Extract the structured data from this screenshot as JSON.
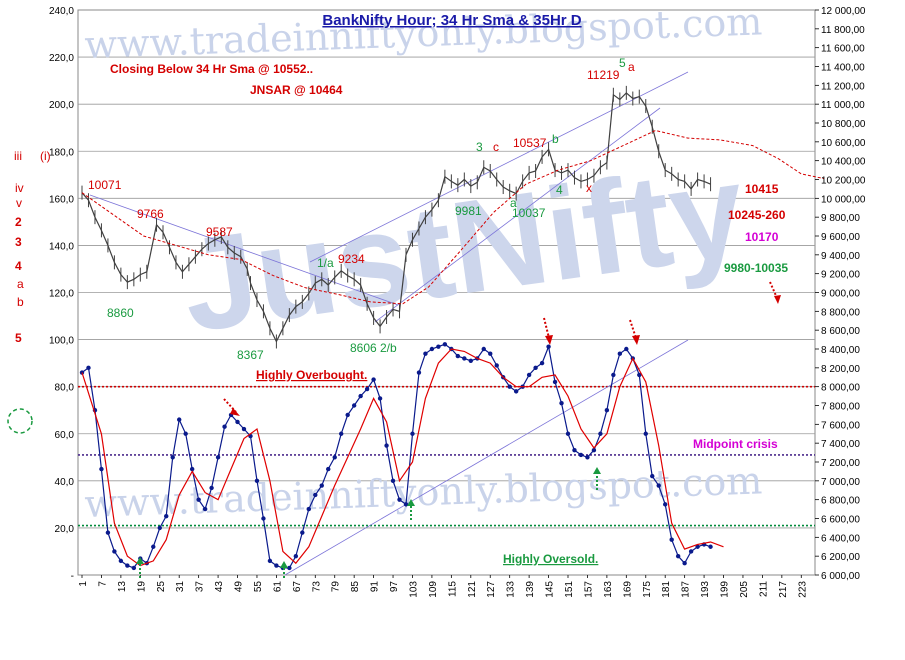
{
  "chart_data": {
    "type": "line",
    "title": "BankNifty Hour; 34 Hr Sma & 35Hr D",
    "watermarks": [
      "www.tradeinniftyonly.blogspot.com",
      "www.tradeinniftyonly.blogspot.com",
      "JustNifty"
    ],
    "left_axis": {
      "ylim": [
        0,
        240
      ],
      "ticks": [
        "-",
        "20,0",
        "40,0",
        "60,0",
        "80,0",
        "100,0",
        "120,0",
        "140,0",
        "160,0",
        "180,0",
        "200,0",
        "220,0",
        "240,0"
      ]
    },
    "right_axis": {
      "ylim": [
        6000,
        12000
      ],
      "ticks": [
        "6 000,00",
        "6 200,00",
        "6 400,00",
        "6 600,00",
        "6 800,00",
        "7 000,00",
        "7 200,00",
        "7 400,00",
        "7 600,00",
        "7 800,00",
        "8 000,00",
        "8 200,00",
        "8 400,00",
        "8 600,00",
        "8 800,00",
        "9 000,00",
        "9 200,00",
        "9 400,00",
        "9 600,00",
        "9 800,00",
        "10 000,00",
        "10 200,00",
        "10 400,00",
        "10 600,00",
        "10 800,00",
        "11 000,00",
        "11 200,00",
        "11 400,00",
        "11 600,00",
        "11 800,00",
        "12 000,00"
      ]
    },
    "x_axis": {
      "xlim": [
        1,
        226
      ],
      "ticks": [
        "1",
        "7",
        "13",
        "19",
        "25",
        "31",
        "37",
        "43",
        "49",
        "55",
        "61",
        "67",
        "73",
        "79",
        "85",
        "91",
        "97",
        "103",
        "109",
        "115",
        "121",
        "127",
        "133",
        "139",
        "145",
        "151",
        "157",
        "163",
        "169",
        "175",
        "181",
        "187",
        "193",
        "199",
        "205",
        "211",
        "217",
        "223"
      ]
    },
    "grid": true,
    "series": [
      {
        "axis": "right",
        "color": "#404040",
        "points": [
          [
            1,
            10060
          ],
          [
            3,
            9980
          ],
          [
            5,
            9800
          ],
          [
            7,
            9660
          ],
          [
            9,
            9500
          ],
          [
            11,
            9320
          ],
          [
            13,
            9190
          ],
          [
            15,
            9110
          ],
          [
            17,
            9140
          ],
          [
            19,
            9190
          ],
          [
            21,
            9220
          ],
          [
            24,
            9720
          ],
          [
            26,
            9640
          ],
          [
            28,
            9480
          ],
          [
            30,
            9320
          ],
          [
            32,
            9220
          ],
          [
            34,
            9300
          ],
          [
            36,
            9380
          ],
          [
            38,
            9460
          ],
          [
            40,
            9520
          ],
          [
            42,
            9560
          ],
          [
            44,
            9590
          ],
          [
            46,
            9480
          ],
          [
            48,
            9420
          ],
          [
            50,
            9380
          ],
          [
            52,
            9250
          ],
          [
            53,
            9100
          ],
          [
            55,
            8920
          ],
          [
            57,
            8800
          ],
          [
            59,
            8620
          ],
          [
            61,
            8480
          ],
          [
            63,
            8620
          ],
          [
            65,
            8760
          ],
          [
            67,
            8850
          ],
          [
            69,
            8900
          ],
          [
            71,
            8990
          ],
          [
            73,
            9100
          ],
          [
            75,
            9140
          ],
          [
            77,
            9080
          ],
          [
            79,
            9160
          ],
          [
            81,
            9230
          ],
          [
            83,
            9180
          ],
          [
            85,
            9140
          ],
          [
            87,
            9080
          ],
          [
            89,
            8880
          ],
          [
            91,
            8730
          ],
          [
            93,
            8640
          ],
          [
            95,
            8740
          ],
          [
            97,
            8820
          ],
          [
            99,
            8800
          ],
          [
            101,
            9400
          ],
          [
            103,
            9560
          ],
          [
            105,
            9680
          ],
          [
            107,
            9800
          ],
          [
            109,
            9880
          ],
          [
            111,
            9980
          ],
          [
            113,
            10230
          ],
          [
            115,
            10180
          ],
          [
            117,
            10140
          ],
          [
            119,
            10200
          ],
          [
            121,
            10130
          ],
          [
            123,
            10170
          ],
          [
            125,
            10330
          ],
          [
            127,
            10290
          ],
          [
            129,
            10200
          ],
          [
            131,
            10120
          ],
          [
            133,
            10080
          ],
          [
            135,
            10050
          ],
          [
            137,
            10180
          ],
          [
            139,
            10270
          ],
          [
            141,
            10290
          ],
          [
            143,
            10440
          ],
          [
            145,
            10520
          ],
          [
            147,
            10300
          ],
          [
            149,
            10270
          ],
          [
            151,
            10300
          ],
          [
            153,
            10220
          ],
          [
            155,
            10180
          ],
          [
            157,
            10200
          ],
          [
            159,
            10240
          ],
          [
            161,
            10330
          ],
          [
            163,
            10380
          ],
          [
            165,
            11100
          ],
          [
            167,
            11050
          ],
          [
            169,
            11120
          ],
          [
            171,
            11060
          ],
          [
            173,
            11080
          ],
          [
            175,
            10980
          ],
          [
            177,
            10760
          ],
          [
            179,
            10500
          ],
          [
            181,
            10300
          ],
          [
            183,
            10260
          ],
          [
            185,
            10200
          ],
          [
            187,
            10180
          ],
          [
            189,
            10100
          ],
          [
            191,
            10200
          ],
          [
            193,
            10180
          ],
          [
            195,
            10150
          ]
        ]
      },
      {
        "axis": "right",
        "color": "#d40000",
        "dashed": true,
        "points": [
          [
            1,
            10060
          ],
          [
            20,
            9600
          ],
          [
            40,
            9400
          ],
          [
            50,
            9350
          ],
          [
            60,
            9180
          ],
          [
            70,
            9050
          ],
          [
            80,
            8980
          ],
          [
            90,
            8900
          ],
          [
            100,
            8880
          ],
          [
            108,
            9060
          ],
          [
            118,
            9450
          ],
          [
            128,
            9850
          ],
          [
            138,
            10150
          ],
          [
            148,
            10300
          ],
          [
            158,
            10400
          ],
          [
            168,
            10560
          ],
          [
            178,
            10720
          ],
          [
            188,
            10640
          ],
          [
            198,
            10620
          ],
          [
            208,
            10560
          ],
          [
            216,
            10420
          ],
          [
            223,
            10260
          ],
          [
            230,
            10210
          ]
        ]
      },
      {
        "axis": "left",
        "color": "#0a1a8c",
        "points": [
          [
            1,
            86
          ],
          [
            3,
            88
          ],
          [
            5,
            70
          ],
          [
            7,
            45
          ],
          [
            9,
            18
          ],
          [
            11,
            10
          ],
          [
            13,
            6
          ],
          [
            15,
            4
          ],
          [
            17,
            3
          ],
          [
            19,
            7
          ],
          [
            21,
            5
          ],
          [
            23,
            12
          ],
          [
            25,
            20
          ],
          [
            27,
            25
          ],
          [
            29,
            50
          ],
          [
            31,
            66
          ],
          [
            33,
            60
          ],
          [
            35,
            45
          ],
          [
            37,
            32
          ],
          [
            39,
            28
          ],
          [
            41,
            37
          ],
          [
            43,
            50
          ],
          [
            45,
            63
          ],
          [
            47,
            68
          ],
          [
            49,
            65
          ],
          [
            51,
            62
          ],
          [
            53,
            59
          ],
          [
            55,
            40
          ],
          [
            57,
            24
          ],
          [
            59,
            6
          ],
          [
            61,
            4
          ],
          [
            63,
            3
          ],
          [
            65,
            3
          ],
          [
            67,
            8
          ],
          [
            69,
            18
          ],
          [
            71,
            28
          ],
          [
            73,
            34
          ],
          [
            75,
            38
          ],
          [
            77,
            45
          ],
          [
            79,
            50
          ],
          [
            81,
            60
          ],
          [
            83,
            68
          ],
          [
            85,
            72
          ],
          [
            87,
            76
          ],
          [
            89,
            79
          ],
          [
            91,
            83
          ],
          [
            93,
            75
          ],
          [
            95,
            55
          ],
          [
            97,
            40
          ],
          [
            99,
            32
          ],
          [
            101,
            30
          ],
          [
            103,
            60
          ],
          [
            105,
            86
          ],
          [
            107,
            94
          ],
          [
            109,
            96
          ],
          [
            111,
            97
          ],
          [
            113,
            98
          ],
          [
            115,
            96
          ],
          [
            117,
            93
          ],
          [
            119,
            92
          ],
          [
            121,
            91
          ],
          [
            123,
            92
          ],
          [
            125,
            96
          ],
          [
            127,
            94
          ],
          [
            129,
            89
          ],
          [
            131,
            84
          ],
          [
            133,
            80
          ],
          [
            135,
            78
          ],
          [
            137,
            80
          ],
          [
            139,
            85
          ],
          [
            141,
            88
          ],
          [
            143,
            90
          ],
          [
            145,
            97
          ],
          [
            147,
            82
          ],
          [
            149,
            73
          ],
          [
            151,
            60
          ],
          [
            153,
            53
          ],
          [
            155,
            51
          ],
          [
            157,
            50
          ],
          [
            159,
            53
          ],
          [
            161,
            60
          ],
          [
            163,
            70
          ],
          [
            165,
            85
          ],
          [
            167,
            94
          ],
          [
            169,
            96
          ],
          [
            171,
            92
          ],
          [
            173,
            85
          ],
          [
            175,
            60
          ],
          [
            177,
            42
          ],
          [
            179,
            38
          ],
          [
            181,
            30
          ],
          [
            183,
            15
          ],
          [
            185,
            8
          ],
          [
            187,
            5
          ],
          [
            189,
            10
          ],
          [
            191,
            12
          ],
          [
            193,
            13
          ],
          [
            195,
            12
          ]
        ]
      },
      {
        "axis": "left",
        "color": "#e00000",
        "points": [
          [
            1,
            86
          ],
          [
            7,
            60
          ],
          [
            11,
            22
          ],
          [
            15,
            8
          ],
          [
            19,
            4
          ],
          [
            23,
            6
          ],
          [
            27,
            15
          ],
          [
            31,
            34
          ],
          [
            35,
            44
          ],
          [
            39,
            35
          ],
          [
            43,
            32
          ],
          [
            47,
            45
          ],
          [
            51,
            58
          ],
          [
            55,
            62
          ],
          [
            59,
            40
          ],
          [
            63,
            10
          ],
          [
            67,
            5
          ],
          [
            71,
            12
          ],
          [
            75,
            25
          ],
          [
            79,
            38
          ],
          [
            83,
            50
          ],
          [
            87,
            62
          ],
          [
            91,
            75
          ],
          [
            95,
            65
          ],
          [
            99,
            40
          ],
          [
            103,
            48
          ],
          [
            107,
            75
          ],
          [
            111,
            90
          ],
          [
            115,
            96
          ],
          [
            119,
            95
          ],
          [
            123,
            92
          ],
          [
            127,
            90
          ],
          [
            131,
            84
          ],
          [
            135,
            80
          ],
          [
            139,
            80
          ],
          [
            143,
            84
          ],
          [
            147,
            85
          ],
          [
            151,
            76
          ],
          [
            155,
            62
          ],
          [
            159,
            54
          ],
          [
            163,
            60
          ],
          [
            167,
            80
          ],
          [
            171,
            92
          ],
          [
            175,
            82
          ],
          [
            179,
            55
          ],
          [
            183,
            22
          ],
          [
            187,
            11
          ],
          [
            191,
            13
          ],
          [
            195,
            14
          ],
          [
            199,
            12
          ]
        ]
      }
    ],
    "reference_lines": [
      {
        "axis": "left",
        "value": 80,
        "color": "#cc0000",
        "label": "Highly Overbought."
      },
      {
        "axis": "left",
        "value": 51,
        "color": "#4b2a8c",
        "label": "Midpoint crisis"
      },
      {
        "axis": "left",
        "value": 21,
        "color": "#008a3a",
        "label": "Highly Oversold."
      }
    ],
    "annotations": {
      "closing_text": "Closing Below 34 Hr Sma @ 10552..",
      "jnsar_text": "JNSAR @ 10464",
      "right_labels": [
        "10415",
        "10245-260",
        "10170",
        "9980-10035"
      ],
      "left_wave_labels": [
        "iii",
        "(i)",
        "iv",
        "v",
        "2",
        "3",
        "4",
        "a",
        "b",
        "5"
      ],
      "price_labels": [
        "10071",
        "9766",
        "9587",
        "8860",
        "8367",
        "9234",
        "8606",
        "9981",
        "10037",
        "10537",
        "11219"
      ],
      "wave_labels": [
        "1/a",
        "2/b",
        "3",
        "c",
        "a",
        "b",
        "4",
        "x",
        "5",
        "a"
      ]
    }
  }
}
